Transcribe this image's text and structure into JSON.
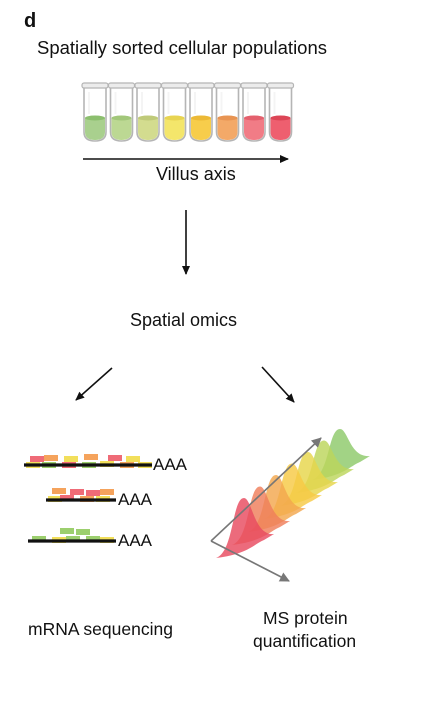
{
  "panel_letter": "d",
  "title": "Spatially sorted cellular populations",
  "axis_label": "Villus axis",
  "omics_label": "Spatial omics",
  "mrna": {
    "tail_1": "AAA",
    "tail_2": "AAA",
    "tail_3": "AAA",
    "label": "mRNA sequencing"
  },
  "ms": {
    "label_line1": "MS protein",
    "label_line2": "quantification"
  },
  "tubes": [
    {
      "liquid": "#a9d08e",
      "top": "#8cbf6e"
    },
    {
      "liquid": "#bcd893",
      "top": "#a2c77a"
    },
    {
      "liquid": "#d3dc8f",
      "top": "#bfca79"
    },
    {
      "liquid": "#f4e66b",
      "top": "#e8d451"
    },
    {
      "liquid": "#f7cd4b",
      "top": "#ecb935"
    },
    {
      "liquid": "#f3a968",
      "top": "#e89452"
    },
    {
      "liquid": "#f17c86",
      "top": "#e4606d"
    },
    {
      "liquid": "#ee5f6f",
      "top": "#dc4556"
    }
  ],
  "peaks": [
    "#e84a5f",
    "#ef7e5a",
    "#f3a74e",
    "#f6c944",
    "#e6d64a",
    "#bcd65b",
    "#8ec96a"
  ],
  "read_colors": {
    "red": "#ef6b77",
    "orange": "#f5a35c",
    "yellow": "#f2df5b",
    "green": "#9ccf6e"
  }
}
